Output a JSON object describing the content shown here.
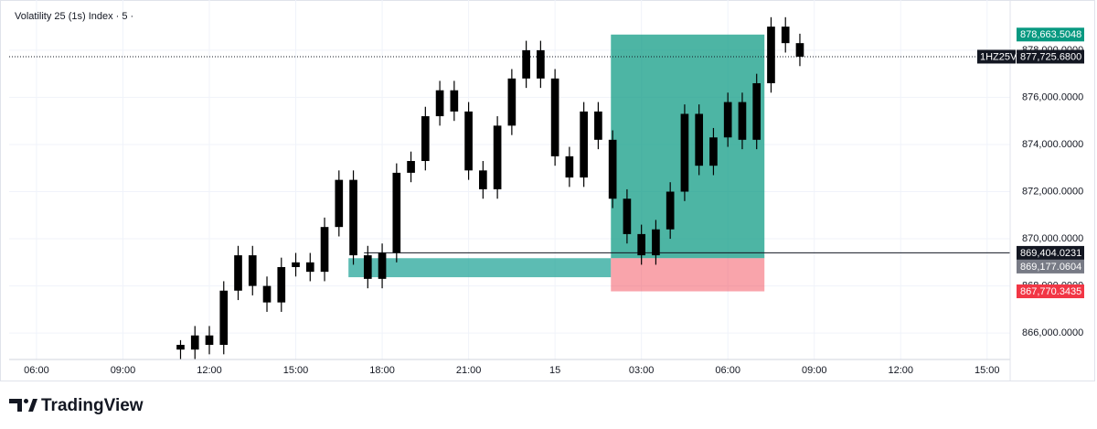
{
  "chart_data": {
    "type": "candlestick",
    "title": "Volatility 25 (1s) Index · 5 ·",
    "x": [
      5,
      5.5,
      6,
      6.5,
      7,
      7.5,
      8,
      8.5,
      9,
      9.5,
      10,
      10.5,
      11,
      11.5,
      12,
      12.5,
      13,
      13.5,
      14,
      14.5,
      15,
      15.5,
      16,
      16.5,
      17,
      17.5,
      18,
      18.5,
      19,
      19.5,
      20,
      20.5,
      21,
      21.5,
      22,
      22.5,
      23,
      23.5,
      24,
      24.5,
      25,
      25.5,
      26,
      26.5
    ],
    "open": [
      865500,
      865300,
      865900,
      865500,
      867800,
      869300,
      868000,
      867300,
      868800,
      869000,
      868600,
      870500,
      872500,
      869300,
      868300,
      869400,
      872800,
      873300,
      875200,
      876300,
      875400,
      872900,
      872100,
      874800,
      876800,
      878000,
      876800,
      873500,
      872600,
      875400,
      874200,
      871700,
      870200,
      869300,
      870400,
      872000,
      875300,
      873100,
      874300,
      875800,
      874200,
      876600,
      879000,
      878300
    ],
    "high": [
      865700,
      866300,
      866300,
      868200,
      869700,
      869700,
      868400,
      869200,
      869400,
      869400,
      870900,
      872900,
      872900,
      869700,
      869800,
      873200,
      873700,
      875600,
      876700,
      876700,
      875800,
      873300,
      875200,
      877200,
      878400,
      878400,
      877200,
      873900,
      875800,
      875800,
      874600,
      872100,
      870600,
      870800,
      872400,
      875700,
      875700,
      874700,
      876200,
      876200,
      877000,
      879400,
      879400,
      878700
    ],
    "low": [
      864900,
      864900,
      865100,
      865100,
      867400,
      867600,
      866900,
      866900,
      868400,
      868200,
      868200,
      870100,
      868900,
      867900,
      867900,
      869000,
      872400,
      872900,
      874800,
      875000,
      872500,
      871700,
      871700,
      874400,
      876400,
      876400,
      873100,
      872200,
      872200,
      873800,
      871300,
      869800,
      868900,
      868900,
      870000,
      871600,
      872700,
      872700,
      873900,
      873800,
      873800,
      876200,
      877900,
      877325.68
    ],
    "close": [
      865300,
      865900,
      865500,
      867800,
      869300,
      868000,
      867300,
      868800,
      869000,
      868600,
      870500,
      872500,
      869300,
      868300,
      869400,
      872800,
      873300,
      875200,
      876300,
      875400,
      872900,
      872100,
      874800,
      876800,
      878000,
      876800,
      873500,
      872600,
      875400,
      874200,
      871700,
      870200,
      869300,
      870400,
      872000,
      875300,
      873100,
      874300,
      875800,
      874200,
      876600,
      879000,
      878300,
      877725.68
    ],
    "color": "#000000",
    "xlim": [
      -0.95,
      33.8
    ],
    "xticks": [
      {
        "value": 0,
        "label": "06:00"
      },
      {
        "value": 3,
        "label": "09:00"
      },
      {
        "value": 6,
        "label": "12:00"
      },
      {
        "value": 9,
        "label": "15:00"
      },
      {
        "value": 12,
        "label": "18:00"
      },
      {
        "value": 15,
        "label": "21:00"
      },
      {
        "value": 18,
        "label": "15"
      },
      {
        "value": 21,
        "label": "03:00"
      },
      {
        "value": 24,
        "label": "06:00"
      },
      {
        "value": 27,
        "label": "09:00"
      },
      {
        "value": 30,
        "label": "12:00"
      },
      {
        "value": 33,
        "label": "15:00"
      }
    ],
    "ylim": [
      864880,
      880130
    ],
    "yticks": [
      {
        "value": 866000,
        "label": "866,000.0000"
      },
      {
        "value": 868000,
        "label": "868,000.0000"
      },
      {
        "value": 870000,
        "label": "870,000.0000"
      },
      {
        "value": 872000,
        "label": "872,000.0000"
      },
      {
        "value": 874000,
        "label": "874,000.0000"
      },
      {
        "value": 876000,
        "label": "876,000.0000"
      },
      {
        "value": 878000,
        "label": "878,000.0000"
      }
    ],
    "grid": true,
    "current_price": {
      "symbol": "1HZ25V",
      "value": 877725.68,
      "label": "877,725.6800"
    },
    "price_line": {
      "value": 869404.0231,
      "label": "869,404.0231",
      "x_start": 11.37
    },
    "zone": {
      "x": [
        10.83,
        19.94
      ],
      "low": 868370
    },
    "position": {
      "x": [
        19.94,
        25.27
      ],
      "target": {
        "value": 878663.5048,
        "label": "878,663.5048",
        "color": "#089981"
      },
      "entry": {
        "value": 869177.0604,
        "label": "869,177.0604",
        "color": "#787b86"
      },
      "stop": {
        "value": 867770.3435,
        "label": "867,770.3435",
        "color": "#f23645"
      }
    }
  },
  "brand": "TradingView"
}
